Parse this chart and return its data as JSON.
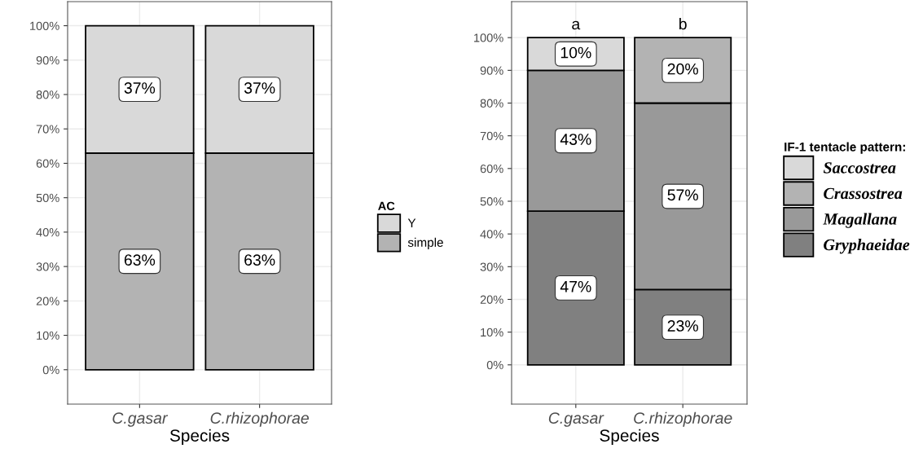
{
  "chart_data": [
    {
      "type": "bar",
      "stacked": true,
      "xlabel": "Species",
      "legend_title": "AC",
      "legend": "right",
      "grid": true,
      "categories": [
        "C.gasar",
        "C.rhizophorae"
      ],
      "ylim": [
        -10,
        107
      ],
      "yticks": [
        {
          "value": 0,
          "label": "0%"
        },
        {
          "value": 10,
          "label": "10%"
        },
        {
          "value": 20,
          "label": "20%"
        },
        {
          "value": 30,
          "label": "30%"
        },
        {
          "value": 40,
          "label": "40%"
        },
        {
          "value": 50,
          "label": "50%"
        },
        {
          "value": 60,
          "label": "60%"
        },
        {
          "value": 70,
          "label": "70%"
        },
        {
          "value": 80,
          "label": "80%"
        },
        {
          "value": 90,
          "label": "90%"
        },
        {
          "value": 100,
          "label": "100%"
        }
      ],
      "series": [
        {
          "name": "simple",
          "color": "#b3b3b3",
          "values": [
            63,
            63
          ],
          "value_labels": [
            "63%",
            "63%"
          ]
        },
        {
          "name": "Y",
          "color": "#d9d9d9",
          "values": [
            37,
            37
          ],
          "value_labels": [
            "37%",
            "37%"
          ]
        }
      ]
    },
    {
      "type": "bar",
      "stacked": true,
      "xlabel": "Species",
      "legend_title": "IF-1 tentacle pattern:",
      "legend": "right",
      "grid": true,
      "categories": [
        "C.gasar",
        "C.rhizophorae"
      ],
      "ylim": [
        -12,
        111
      ],
      "yticks": [
        {
          "value": 0,
          "label": "0%"
        },
        {
          "value": 10,
          "label": "10%"
        },
        {
          "value": 20,
          "label": "20%"
        },
        {
          "value": 30,
          "label": "30%"
        },
        {
          "value": 40,
          "label": "40%"
        },
        {
          "value": 50,
          "label": "50%"
        },
        {
          "value": 60,
          "label": "60%"
        },
        {
          "value": 70,
          "label": "70%"
        },
        {
          "value": 80,
          "label": "80%"
        },
        {
          "value": 90,
          "label": "90%"
        },
        {
          "value": 100,
          "label": "100%"
        }
      ],
      "annotations": [
        "a",
        "b"
      ],
      "series": [
        {
          "name": "Gryphaeidae",
          "color": "#808080",
          "values": [
            47,
            23
          ],
          "value_labels": [
            "47%",
            "23%"
          ]
        },
        {
          "name": "Magallana",
          "color": "#999999",
          "values": [
            43,
            57
          ],
          "value_labels": [
            "43%",
            "57%"
          ]
        },
        {
          "name": "Crassostrea",
          "color": "#b3b3b3",
          "values": [
            null,
            20
          ],
          "value_labels": [
            null,
            "20%"
          ]
        },
        {
          "name": "Saccostrea",
          "color": "#d9d9d9",
          "values": [
            10,
            null
          ],
          "value_labels": [
            "10%",
            null
          ]
        }
      ]
    }
  ]
}
